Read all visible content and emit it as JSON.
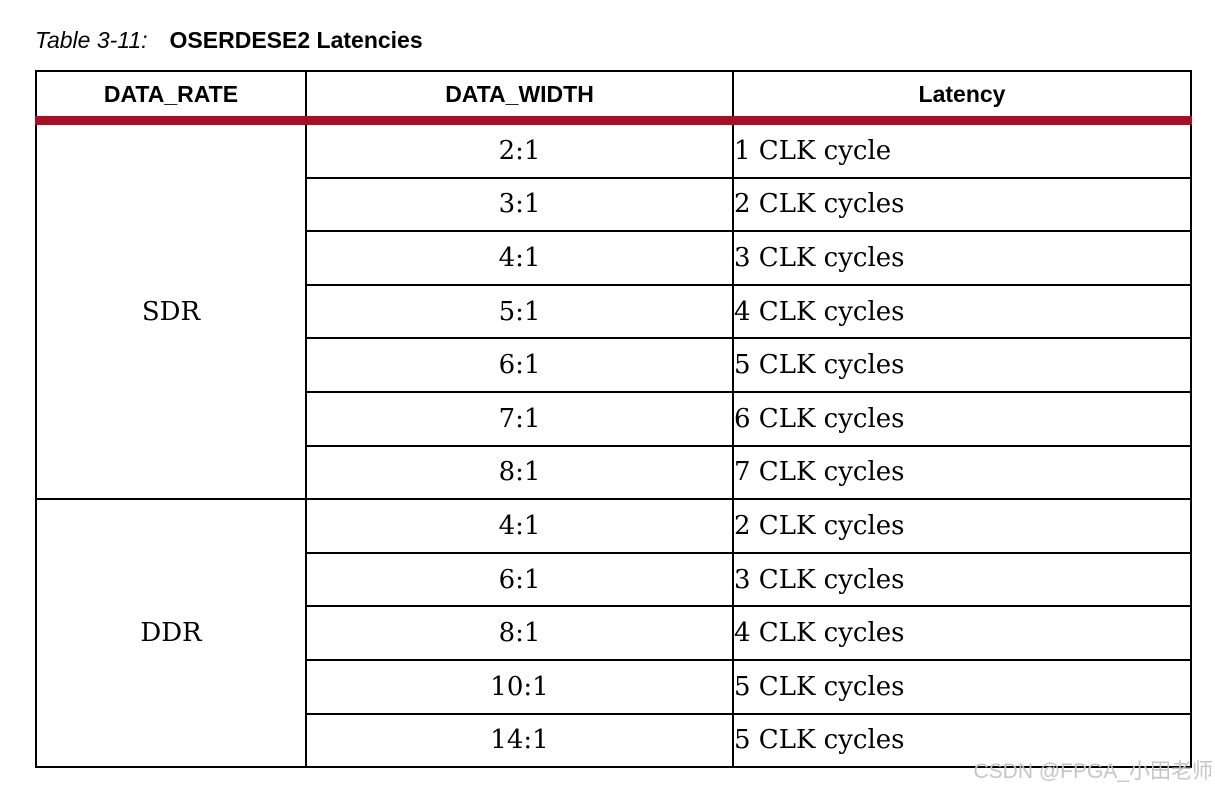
{
  "title": {
    "prefix": "Table 3-11:",
    "text": "OSERDESE2 Latencies"
  },
  "table": {
    "columns": [
      "DATA_RATE",
      "DATA_WIDTH",
      "Latency"
    ],
    "groups": [
      {
        "data_rate": "SDR",
        "rows": [
          {
            "data_width": "2:1",
            "latency": "1 CLK cycle"
          },
          {
            "data_width": "3:1",
            "latency": "2 CLK cycles"
          },
          {
            "data_width": "4:1",
            "latency": "3 CLK cycles"
          },
          {
            "data_width": "5:1",
            "latency": "4 CLK cycles"
          },
          {
            "data_width": "6:1",
            "latency": "5 CLK cycles"
          },
          {
            "data_width": "7:1",
            "latency": "6 CLK cycles"
          },
          {
            "data_width": "8:1",
            "latency": "7 CLK cycles"
          }
        ]
      },
      {
        "data_rate": "DDR",
        "rows": [
          {
            "data_width": "4:1",
            "latency": "2 CLK cycles"
          },
          {
            "data_width": "6:1",
            "latency": "3 CLK cycles"
          },
          {
            "data_width": "8:1",
            "latency": "4 CLK cycles"
          },
          {
            "data_width": "10:1",
            "latency": "5 CLK cycles"
          },
          {
            "data_width": "14:1",
            "latency": "5 CLK cycles"
          }
        ]
      }
    ]
  },
  "watermark": {
    "text": "CSDN @FPGA_小田老师"
  },
  "colors": {
    "header_rule": "#A90E22",
    "table_border": "#000000",
    "watermark": "#C3C3C3",
    "background": "#FFFFFF"
  }
}
